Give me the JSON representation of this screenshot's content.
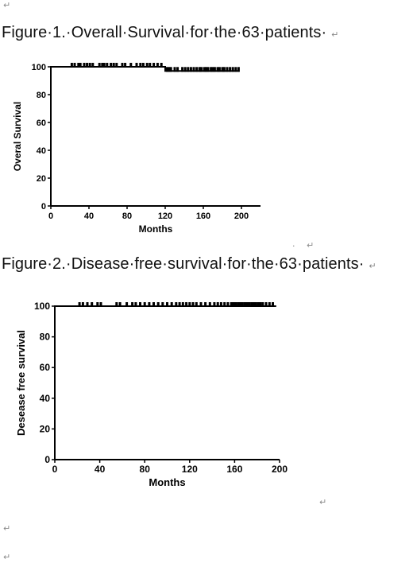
{
  "document": {
    "return_mark": "↵",
    "dot_mark": "·",
    "figure1_caption": "Figure·1.·Overall·Survival·for·the·63·patients·",
    "figure2_caption": "Figure·2.·Disease·free·survival·for·the·63·patients·"
  },
  "chart_data": [
    {
      "type": "line",
      "title": "Figure 1. Overall Survival for the 63 patients",
      "xlabel": "Months",
      "ylabel": "Overal Survival",
      "xlim": [
        0,
        220
      ],
      "ylim": [
        0,
        100
      ],
      "xticks": [
        0,
        40,
        80,
        120,
        160,
        200
      ],
      "yticks": [
        0,
        20,
        40,
        60,
        80,
        100
      ],
      "series": [
        {
          "steps": [
            [
              0,
              100
            ],
            [
              120,
              100
            ],
            [
              120,
              97
            ],
            [
              198,
              97
            ]
          ],
          "censored": [
            {
              "x": 22,
              "y": 100
            },
            {
              "x": 25,
              "y": 100
            },
            {
              "x": 29,
              "y": 100
            },
            {
              "x": 31,
              "y": 100
            },
            {
              "x": 35,
              "y": 100
            },
            {
              "x": 38,
              "y": 100
            },
            {
              "x": 41,
              "y": 100
            },
            {
              "x": 44,
              "y": 100
            },
            {
              "x": 51,
              "y": 100
            },
            {
              "x": 54,
              "y": 100
            },
            {
              "x": 56,
              "y": 100
            },
            {
              "x": 59,
              "y": 100
            },
            {
              "x": 63,
              "y": 100
            },
            {
              "x": 66,
              "y": 100
            },
            {
              "x": 69,
              "y": 100
            },
            {
              "x": 75,
              "y": 100
            },
            {
              "x": 78,
              "y": 100
            },
            {
              "x": 84,
              "y": 100
            },
            {
              "x": 90,
              "y": 100
            },
            {
              "x": 94,
              "y": 100
            },
            {
              "x": 97,
              "y": 100
            },
            {
              "x": 101,
              "y": 100
            },
            {
              "x": 104,
              "y": 100
            },
            {
              "x": 108,
              "y": 100
            },
            {
              "x": 112,
              "y": 100
            },
            {
              "x": 116,
              "y": 100
            },
            {
              "x": 122,
              "y": 97
            },
            {
              "x": 124,
              "y": 97
            },
            {
              "x": 126,
              "y": 97
            },
            {
              "x": 130,
              "y": 97
            },
            {
              "x": 133,
              "y": 97
            },
            {
              "x": 138,
              "y": 97
            },
            {
              "x": 141,
              "y": 97
            },
            {
              "x": 144,
              "y": 97
            },
            {
              "x": 147,
              "y": 97
            },
            {
              "x": 150,
              "y": 97
            },
            {
              "x": 153,
              "y": 97
            },
            {
              "x": 156,
              "y": 97
            },
            {
              "x": 158,
              "y": 97
            },
            {
              "x": 161,
              "y": 97
            },
            {
              "x": 163,
              "y": 97
            },
            {
              "x": 165,
              "y": 97
            },
            {
              "x": 168,
              "y": 97
            },
            {
              "x": 170,
              "y": 97
            },
            {
              "x": 172,
              "y": 97
            },
            {
              "x": 175,
              "y": 97
            },
            {
              "x": 177,
              "y": 97
            },
            {
              "x": 180,
              "y": 97
            },
            {
              "x": 182,
              "y": 97
            },
            {
              "x": 185,
              "y": 97
            },
            {
              "x": 188,
              "y": 97
            },
            {
              "x": 191,
              "y": 97
            },
            {
              "x": 194,
              "y": 97
            },
            {
              "x": 197,
              "y": 97
            }
          ]
        }
      ]
    },
    {
      "type": "line",
      "title": "Figure 2. Disease free survival for the 63 patients",
      "xlabel": "Months",
      "ylabel": "Desease free survival",
      "xlim": [
        0,
        200
      ],
      "ylim": [
        0,
        100
      ],
      "xticks": [
        0,
        40,
        80,
        120,
        160,
        200
      ],
      "yticks": [
        0,
        20,
        40,
        60,
        80,
        100
      ],
      "series": [
        {
          "steps": [
            [
              0,
              100
            ],
            [
              197,
              100
            ]
          ],
          "censored": [
            {
              "x": 22,
              "y": 100
            },
            {
              "x": 25,
              "y": 100
            },
            {
              "x": 29,
              "y": 100
            },
            {
              "x": 33,
              "y": 100
            },
            {
              "x": 38,
              "y": 100
            },
            {
              "x": 41,
              "y": 100
            },
            {
              "x": 55,
              "y": 100
            },
            {
              "x": 58,
              "y": 100
            },
            {
              "x": 64,
              "y": 100
            },
            {
              "x": 69,
              "y": 100
            },
            {
              "x": 72,
              "y": 100
            },
            {
              "x": 76,
              "y": 100
            },
            {
              "x": 80,
              "y": 100
            },
            {
              "x": 84,
              "y": 100
            },
            {
              "x": 88,
              "y": 100
            },
            {
              "x": 92,
              "y": 100
            },
            {
              "x": 96,
              "y": 100
            },
            {
              "x": 100,
              "y": 100
            },
            {
              "x": 104,
              "y": 100
            },
            {
              "x": 108,
              "y": 100
            },
            {
              "x": 111,
              "y": 100
            },
            {
              "x": 114,
              "y": 100
            },
            {
              "x": 117,
              "y": 100
            },
            {
              "x": 120,
              "y": 100
            },
            {
              "x": 123,
              "y": 100
            },
            {
              "x": 126,
              "y": 100
            },
            {
              "x": 130,
              "y": 100
            },
            {
              "x": 134,
              "y": 100
            },
            {
              "x": 138,
              "y": 100
            },
            {
              "x": 142,
              "y": 100
            },
            {
              "x": 145,
              "y": 100
            },
            {
              "x": 148,
              "y": 100
            },
            {
              "x": 151,
              "y": 100
            },
            {
              "x": 154,
              "y": 100
            },
            {
              "x": 157,
              "y": 100
            },
            {
              "x": 159,
              "y": 100
            },
            {
              "x": 161,
              "y": 100
            },
            {
              "x": 163,
              "y": 100
            },
            {
              "x": 165,
              "y": 100
            },
            {
              "x": 167,
              "y": 100
            },
            {
              "x": 169,
              "y": 100
            },
            {
              "x": 171,
              "y": 100
            },
            {
              "x": 173,
              "y": 100
            },
            {
              "x": 175,
              "y": 100
            },
            {
              "x": 177,
              "y": 100
            },
            {
              "x": 179,
              "y": 100
            },
            {
              "x": 181,
              "y": 100
            },
            {
              "x": 183,
              "y": 100
            },
            {
              "x": 185,
              "y": 100
            },
            {
              "x": 188,
              "y": 100
            },
            {
              "x": 191,
              "y": 100
            },
            {
              "x": 194,
              "y": 100
            }
          ]
        }
      ]
    }
  ]
}
